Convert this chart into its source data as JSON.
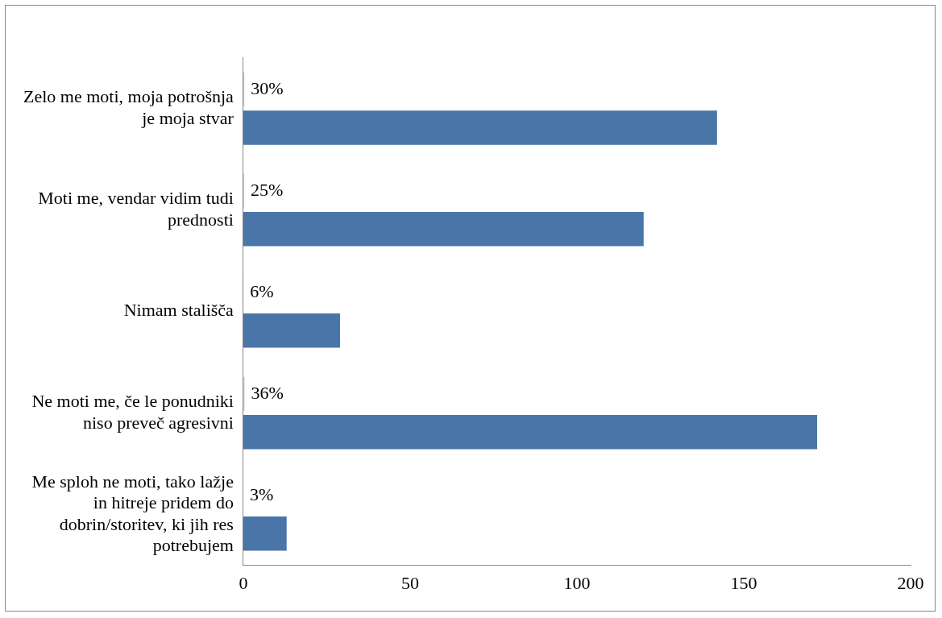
{
  "chart_data": {
    "type": "bar",
    "orientation": "horizontal",
    "categories": [
      "Zelo me moti, moja potrošnja je moja stvar",
      "Moti me, vendar vidim tudi prednosti",
      "Nimam stališča",
      "Ne moti me, če le ponudniki niso preveč agresivni",
      "Me sploh ne moti, tako lažje in hitreje pridem do dobrin/storitev, ki jih res potrebujem"
    ],
    "series": [
      {
        "color": "#c8c8c8",
        "values": [
          0.3,
          0.25,
          0.06,
          0.36,
          0.03
        ],
        "value_labels": [
          "30%",
          "25%",
          "6%",
          "36%",
          "3%"
        ]
      },
      {
        "color": "#4a75a9",
        "values": [
          142,
          120,
          29,
          172,
          13
        ]
      }
    ],
    "xlim": [
      0,
      200
    ],
    "xticks": [
      0,
      50,
      100,
      150,
      200
    ],
    "grid": false,
    "legend": false
  }
}
